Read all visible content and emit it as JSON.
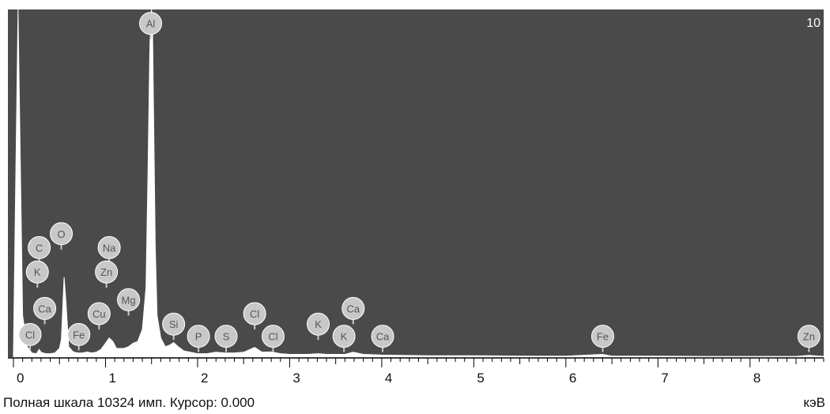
{
  "chart_data": {
    "type": "line",
    "xlabel": "кэВ",
    "xlim": [
      -0.06,
      8.8
    ],
    "ylim": [
      0,
      10
    ],
    "x_ticks": [
      "0",
      "1",
      "2",
      "3",
      "4",
      "5",
      "6",
      "7",
      "8"
    ],
    "full_scale_label": "10",
    "grid": false,
    "series": [
      {
        "x": [
          0.0,
          0.05,
          0.1,
          0.15,
          0.2,
          0.25,
          0.28,
          0.3,
          0.35,
          0.4,
          0.45,
          0.5,
          0.52,
          0.55,
          0.57,
          0.6,
          0.65,
          0.7,
          0.75,
          0.8,
          0.85,
          0.9,
          0.95,
          1.0,
          1.04,
          1.08,
          1.12,
          1.2,
          1.25,
          1.3,
          1.35,
          1.4,
          1.44,
          1.46,
          1.48,
          1.49,
          1.5,
          1.51,
          1.52,
          1.54,
          1.56,
          1.6,
          1.65,
          1.7,
          1.74,
          1.78,
          1.85,
          2.0,
          2.1,
          2.2,
          2.3,
          2.4,
          2.5,
          2.62,
          2.7,
          2.8,
          2.9,
          3.0,
          3.2,
          3.31,
          3.4,
          3.6,
          3.69,
          3.8,
          4.0,
          4.5,
          5.0,
          5.5,
          6.0,
          6.4,
          6.5,
          7.0,
          7.5,
          8.0,
          8.5,
          8.64,
          8.8
        ],
        "y": [
          0.1,
          10.0,
          1.2,
          0.3,
          0.12,
          0.1,
          0.22,
          0.14,
          0.1,
          0.1,
          0.12,
          0.25,
          0.5,
          2.3,
          1.6,
          0.3,
          0.15,
          0.12,
          0.12,
          0.15,
          0.12,
          0.14,
          0.22,
          0.4,
          0.55,
          0.45,
          0.25,
          0.25,
          0.3,
          0.4,
          0.45,
          0.8,
          2.0,
          5.0,
          8.7,
          9.8,
          10.0,
          9.6,
          7.5,
          3.2,
          1.2,
          0.55,
          0.3,
          0.35,
          0.42,
          0.32,
          0.18,
          0.1,
          0.1,
          0.14,
          0.12,
          0.12,
          0.14,
          0.28,
          0.14,
          0.15,
          0.1,
          0.08,
          0.08,
          0.1,
          0.08,
          0.08,
          0.14,
          0.08,
          0.06,
          0.04,
          0.04,
          0.03,
          0.03,
          0.08,
          0.03,
          0.03,
          0.02,
          0.02,
          0.02,
          0.05,
          0.02
        ]
      }
    ],
    "peak_labels": [
      {
        "el": "Al",
        "x": 1.49,
        "y": 9.6
      },
      {
        "el": "O",
        "x": 0.52,
        "y": 3.55
      },
      {
        "el": "C",
        "x": 0.28,
        "y": 3.15
      },
      {
        "el": "Na",
        "x": 1.04,
        "y": 3.15
      },
      {
        "el": "K",
        "x": 0.26,
        "y": 2.45
      },
      {
        "el": "Zn",
        "x": 1.01,
        "y": 2.45
      },
      {
        "el": "Mg",
        "x": 1.25,
        "y": 1.65
      },
      {
        "el": "Ca",
        "x": 0.34,
        "y": 1.4
      },
      {
        "el": "Cu",
        "x": 0.93,
        "y": 1.25
      },
      {
        "el": "Cl",
        "x": 0.18,
        "y": 0.65
      },
      {
        "el": "Fe",
        "x": 0.71,
        "y": 0.65
      },
      {
        "el": "Si",
        "x": 1.74,
        "y": 0.95
      },
      {
        "el": "P",
        "x": 2.01,
        "y": 0.6
      },
      {
        "el": "S",
        "x": 2.31,
        "y": 0.6
      },
      {
        "el": "Cl",
        "x": 2.62,
        "y": 1.25
      },
      {
        "el": "Cl",
        "x": 2.82,
        "y": 0.6
      },
      {
        "el": "K",
        "x": 3.31,
        "y": 0.95
      },
      {
        "el": "K",
        "x": 3.59,
        "y": 0.6
      },
      {
        "el": "Ca",
        "x": 3.69,
        "y": 1.4
      },
      {
        "el": "Ca",
        "x": 4.01,
        "y": 0.6
      },
      {
        "el": "Fe",
        "x": 6.4,
        "y": 0.6
      },
      {
        "el": "Zn",
        "x": 8.64,
        "y": 0.6
      }
    ]
  },
  "status_bar": {
    "full_scale_text": "Полная шкала 10324 имп. Курсор: 0.000",
    "unit": "кэВ"
  },
  "colors": {
    "plot_background": "#4a4a4a",
    "spectrum_fill": "#ffffff",
    "label_bubble": "#c8c8c8"
  }
}
